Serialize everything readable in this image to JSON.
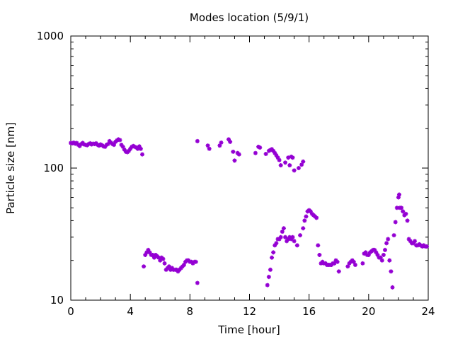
{
  "chart_data": {
    "type": "scatter",
    "title": "Modes location (5/9/1)",
    "xlabel": "Time [hour]",
    "ylabel": "Particle size [nm]",
    "xlim": [
      0,
      24
    ],
    "ylim": [
      10,
      1000
    ],
    "yscale": "log",
    "grid": false,
    "legend": "none",
    "x_ticks": [
      0,
      4,
      8,
      12,
      16,
      20,
      24
    ],
    "x_tick_labels": [
      "0",
      "4",
      "8",
      "12",
      "16",
      "20",
      "24"
    ],
    "y_ticks": [
      10,
      100,
      1000
    ],
    "y_tick_labels": [
      "10",
      "100",
      "1000"
    ],
    "marker": "star",
    "color": "#9400d3",
    "series": [
      {
        "points": [
          [
            0.0,
            155
          ],
          [
            0.1,
            154
          ],
          [
            0.2,
            156
          ],
          [
            0.3,
            153
          ],
          [
            0.4,
            155
          ],
          [
            0.5,
            150
          ],
          [
            0.6,
            147
          ],
          [
            0.7,
            152
          ],
          [
            0.8,
            155
          ],
          [
            0.9,
            151
          ],
          [
            1.0,
            150
          ],
          [
            1.1,
            149
          ],
          [
            1.2,
            152
          ],
          [
            1.3,
            154
          ],
          [
            1.4,
            151
          ],
          [
            1.5,
            153
          ],
          [
            1.6,
            152
          ],
          [
            1.7,
            154
          ],
          [
            1.8,
            150
          ],
          [
            1.9,
            148
          ],
          [
            2.0,
            151
          ],
          [
            2.1,
            149
          ],
          [
            2.2,
            146
          ],
          [
            2.3,
            145
          ],
          [
            2.4,
            150
          ],
          [
            2.5,
            152
          ],
          [
            2.6,
            160
          ],
          [
            2.7,
            156
          ],
          [
            2.8,
            152
          ],
          [
            2.9,
            150
          ],
          [
            3.0,
            158
          ],
          [
            3.1,
            162
          ],
          [
            3.2,
            165
          ],
          [
            3.3,
            163
          ],
          [
            3.4,
            150
          ],
          [
            3.5,
            145
          ],
          [
            3.6,
            138
          ],
          [
            3.7,
            133
          ],
          [
            3.8,
            132
          ],
          [
            3.9,
            135
          ],
          [
            4.0,
            140
          ],
          [
            4.1,
            145
          ],
          [
            4.2,
            147
          ],
          [
            4.3,
            145
          ],
          [
            4.4,
            143
          ],
          [
            4.5,
            140
          ],
          [
            4.6,
            146
          ],
          [
            4.7,
            140
          ],
          [
            4.8,
            127
          ],
          [
            8.5,
            160
          ],
          [
            9.2,
            148
          ],
          [
            9.3,
            140
          ],
          [
            10.0,
            148
          ],
          [
            10.1,
            156
          ],
          [
            10.6,
            165
          ],
          [
            10.7,
            158
          ],
          [
            10.9,
            133
          ],
          [
            11.0,
            114
          ],
          [
            11.2,
            130
          ],
          [
            11.3,
            127
          ],
          [
            12.4,
            130
          ],
          [
            12.6,
            145
          ],
          [
            12.7,
            143
          ],
          [
            13.1,
            128
          ],
          [
            13.3,
            135
          ],
          [
            13.4,
            137
          ],
          [
            13.5,
            139
          ],
          [
            13.6,
            135
          ],
          [
            13.7,
            130
          ],
          [
            13.8,
            125
          ],
          [
            13.9,
            120
          ],
          [
            14.0,
            115
          ],
          [
            14.1,
            105
          ],
          [
            14.4,
            110
          ],
          [
            14.6,
            120
          ],
          [
            14.7,
            105
          ],
          [
            14.8,
            122
          ],
          [
            14.9,
            120
          ],
          [
            15.0,
            96
          ],
          [
            15.3,
            100
          ],
          [
            15.5,
            106
          ],
          [
            15.6,
            112
          ],
          [
            4.9,
            18
          ],
          [
            5.0,
            22
          ],
          [
            5.1,
            23
          ],
          [
            5.2,
            24
          ],
          [
            5.3,
            23
          ],
          [
            5.4,
            22
          ],
          [
            5.5,
            22
          ],
          [
            5.6,
            21
          ],
          [
            5.7,
            22
          ],
          [
            5.8,
            21.5
          ],
          [
            5.9,
            21
          ],
          [
            6.0,
            20
          ],
          [
            6.1,
            21
          ],
          [
            6.2,
            20.5
          ],
          [
            6.3,
            19
          ],
          [
            6.4,
            17
          ],
          [
            6.5,
            17.5
          ],
          [
            6.6,
            18
          ],
          [
            6.7,
            17
          ],
          [
            6.8,
            17.5
          ],
          [
            6.9,
            17
          ],
          [
            7.0,
            17
          ],
          [
            7.1,
            17
          ],
          [
            7.2,
            16.5
          ],
          [
            7.3,
            17
          ],
          [
            7.4,
            17.5
          ],
          [
            7.5,
            18
          ],
          [
            7.6,
            18.5
          ],
          [
            7.7,
            19.5
          ],
          [
            7.8,
            20
          ],
          [
            7.9,
            20
          ],
          [
            8.0,
            19.5
          ],
          [
            8.1,
            19.5
          ],
          [
            8.2,
            19
          ],
          [
            8.3,
            19.5
          ],
          [
            8.4,
            19.5
          ],
          [
            8.5,
            13.5
          ],
          [
            13.2,
            13
          ],
          [
            13.3,
            15
          ],
          [
            13.4,
            17
          ],
          [
            13.5,
            21
          ],
          [
            13.6,
            23
          ],
          [
            13.7,
            26
          ],
          [
            13.8,
            27
          ],
          [
            13.9,
            29
          ],
          [
            14.0,
            29
          ],
          [
            14.1,
            30
          ],
          [
            14.2,
            33
          ],
          [
            14.3,
            35
          ],
          [
            14.4,
            30
          ],
          [
            14.5,
            28
          ],
          [
            14.6,
            29
          ],
          [
            14.7,
            30
          ],
          [
            14.8,
            29
          ],
          [
            14.9,
            30
          ],
          [
            15.0,
            28
          ],
          [
            15.2,
            26
          ],
          [
            15.4,
            31
          ],
          [
            15.6,
            35
          ],
          [
            15.7,
            40
          ],
          [
            15.8,
            43
          ],
          [
            15.9,
            47
          ],
          [
            16.0,
            48
          ],
          [
            16.1,
            47
          ],
          [
            16.2,
            45
          ],
          [
            16.3,
            44
          ],
          [
            16.4,
            43
          ],
          [
            16.5,
            42
          ],
          [
            16.6,
            26
          ],
          [
            16.7,
            22
          ],
          [
            16.8,
            19
          ],
          [
            16.9,
            19.5
          ],
          [
            17.0,
            19
          ],
          [
            17.1,
            19
          ],
          [
            17.2,
            18.5
          ],
          [
            17.3,
            18.5
          ],
          [
            17.4,
            18.5
          ],
          [
            17.5,
            18.5
          ],
          [
            17.6,
            19
          ],
          [
            17.7,
            19
          ],
          [
            17.8,
            20
          ],
          [
            17.9,
            19.5
          ],
          [
            18.0,
            16.5
          ],
          [
            18.6,
            18
          ],
          [
            18.7,
            19
          ],
          [
            18.8,
            19.5
          ],
          [
            18.9,
            20
          ],
          [
            19.0,
            19.5
          ],
          [
            19.1,
            18.5
          ],
          [
            19.6,
            19
          ],
          [
            19.7,
            22.5
          ],
          [
            19.8,
            23
          ],
          [
            19.9,
            22
          ],
          [
            20.0,
            22
          ],
          [
            20.1,
            23
          ],
          [
            20.2,
            23.5
          ],
          [
            20.3,
            24
          ],
          [
            20.4,
            24
          ],
          [
            20.5,
            23
          ],
          [
            20.6,
            22
          ],
          [
            20.7,
            21
          ],
          [
            20.8,
            21
          ],
          [
            20.9,
            20
          ],
          [
            21.0,
            22
          ],
          [
            21.1,
            24
          ],
          [
            21.2,
            27
          ],
          [
            21.3,
            29
          ],
          [
            21.4,
            20
          ],
          [
            21.5,
            16.5
          ],
          [
            21.6,
            12.5
          ],
          [
            21.7,
            31
          ],
          [
            21.8,
            39
          ],
          [
            21.9,
            50
          ],
          [
            22.0,
            60
          ],
          [
            22.05,
            63
          ],
          [
            22.1,
            50
          ],
          [
            22.2,
            50
          ],
          [
            22.3,
            47
          ],
          [
            22.4,
            44
          ],
          [
            22.5,
            45
          ],
          [
            22.6,
            40
          ],
          [
            22.7,
            29
          ],
          [
            22.8,
            28
          ],
          [
            22.9,
            27
          ],
          [
            23.0,
            27
          ],
          [
            23.1,
            28
          ],
          [
            23.2,
            26
          ],
          [
            23.3,
            26
          ],
          [
            23.4,
            26.5
          ],
          [
            23.5,
            26
          ],
          [
            23.6,
            25.5
          ],
          [
            23.7,
            26
          ],
          [
            23.8,
            25.5
          ],
          [
            23.9,
            25.5
          ]
        ]
      }
    ]
  }
}
